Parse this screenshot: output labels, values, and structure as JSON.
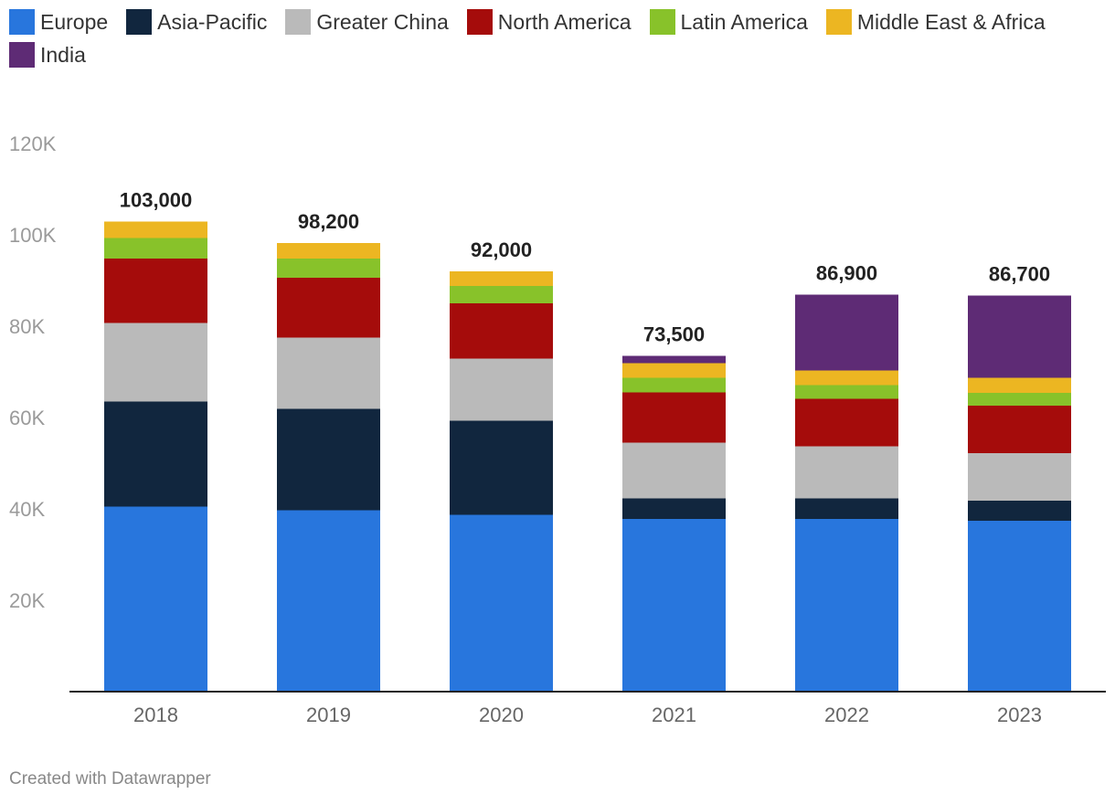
{
  "chart_data": {
    "type": "bar",
    "stacked": true,
    "categories": [
      "2018",
      "2019",
      "2020",
      "2021",
      "2022",
      "2023"
    ],
    "series": [
      {
        "name": "Europe",
        "color": "#2876dd",
        "values": [
          40500,
          39700,
          38700,
          37800,
          37800,
          37400
        ]
      },
      {
        "name": "Asia-Pacific",
        "color": "#11263e",
        "values": [
          23000,
          22200,
          20600,
          4500,
          4500,
          4400
        ]
      },
      {
        "name": "Greater China",
        "color": "#bababa",
        "values": [
          17200,
          15600,
          13600,
          12200,
          11400,
          10400
        ]
      },
      {
        "name": "North America",
        "color": "#a50c0b",
        "values": [
          14100,
          13100,
          12100,
          11000,
          10400,
          10400
        ]
      },
      {
        "name": "Latin America",
        "color": "#88c22a",
        "values": [
          4500,
          4200,
          3800,
          3200,
          3000,
          2800
        ]
      },
      {
        "name": "Middle East & Africa",
        "color": "#ecb622",
        "values": [
          3600,
          3400,
          3200,
          3200,
          3200,
          3300
        ]
      },
      {
        "name": "India",
        "color": "#5e2b75",
        "values": [
          0,
          0,
          0,
          1600,
          16600,
          18000
        ]
      }
    ],
    "totals": [
      "103,000",
      "98,200",
      "92,000",
      "73,500",
      "86,900",
      "86,700"
    ],
    "ylim": [
      0,
      120000
    ],
    "yticks": [
      20000,
      40000,
      60000,
      80000,
      100000,
      120000
    ],
    "ytick_labels": [
      "20K",
      "40K",
      "60K",
      "80K",
      "100K",
      "120K"
    ],
    "xlabel": "",
    "ylabel": "",
    "grid": false,
    "legend_position": "top-left"
  },
  "footer": {
    "credit": "Created with Datawrapper"
  }
}
